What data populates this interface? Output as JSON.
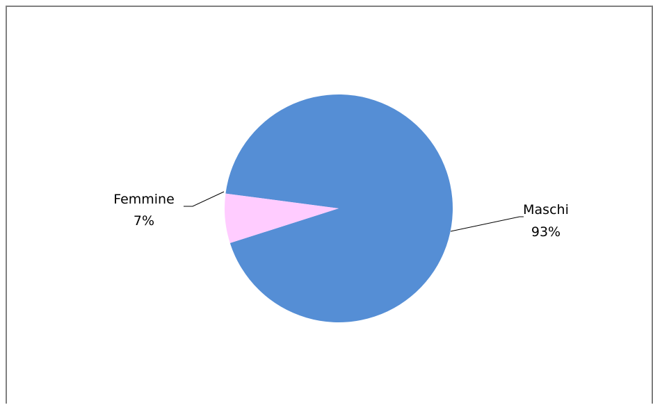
{
  "chart_data": {
    "type": "pie",
    "title": "",
    "slices": [
      {
        "name": "Maschi",
        "value": 93,
        "percent_label": "93%",
        "color": "#558ED5"
      },
      {
        "name": "Femmine",
        "value": 7,
        "percent_label": "7%",
        "color": "#FFCCFF"
      }
    ],
    "legend": "none",
    "data_labels": "outside-with-leader-lines"
  }
}
